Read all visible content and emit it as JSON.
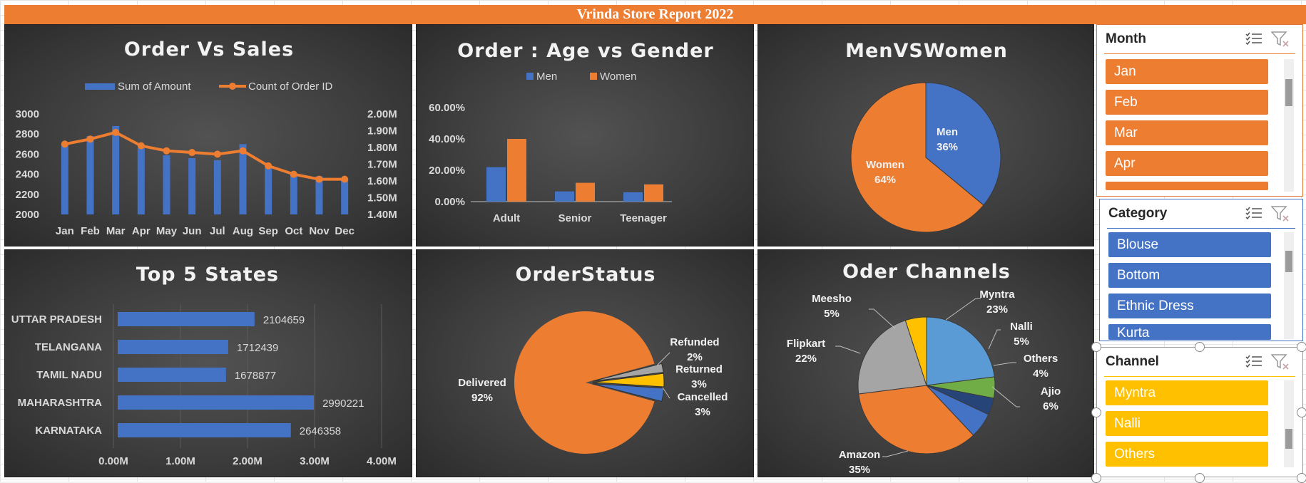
{
  "report_title": "Vrinda Store Report 2022",
  "colors": {
    "orange": "#ed7d31",
    "blue": "#4472c4",
    "gray": "#a5a5a5",
    "yellow": "#ffc000",
    "green": "#70ad47",
    "navy": "#264478"
  },
  "charts": {
    "order_vs_sales": {
      "title": "Order Vs Sales",
      "legend_amount": "Sum of Amount",
      "legend_orders": "Count of Order ID",
      "left_ticks": [
        "3000",
        "2800",
        "2600",
        "2400",
        "2200",
        "2000"
      ],
      "right_ticks": [
        "2.00M",
        "1.90M",
        "1.80M",
        "1.70M",
        "1.60M",
        "1.50M",
        "1.40M"
      ]
    },
    "age_gender": {
      "title": "Order : Age vs Gender",
      "legend_men": "Men",
      "legend_women": "Women",
      "y_ticks": [
        "60.00%",
        "40.00%",
        "20.00%",
        "0.00%"
      ]
    },
    "men_vs_women": {
      "title": "MenVSWomen",
      "men_name": "Men",
      "men_pct": "36%",
      "women_name": "Women",
      "women_pct": "64%"
    },
    "top_states": {
      "title": "Top 5 States",
      "x_ticks": [
        "0.00M",
        "1.00M",
        "2.00M",
        "3.00M",
        "4.00M"
      ]
    },
    "order_status": {
      "title": "OrderStatus",
      "labels": [
        {
          "name": "Delivered",
          "pct": "92%"
        },
        {
          "name": "Refunded",
          "pct": "2%"
        },
        {
          "name": "Returned",
          "pct": "3%"
        },
        {
          "name": "Cancelled",
          "pct": "3%"
        }
      ]
    },
    "channels": {
      "title": "Oder Channels",
      "labels": [
        {
          "name": "Myntra",
          "pct": "23%"
        },
        {
          "name": "Nalli",
          "pct": "5%"
        },
        {
          "name": "Others",
          "pct": "4%"
        },
        {
          "name": "Ajio",
          "pct": "6%"
        },
        {
          "name": "Amazon",
          "pct": "35%"
        },
        {
          "name": "Flipkart",
          "pct": "22%"
        },
        {
          "name": "Meesho",
          "pct": "5%"
        }
      ]
    }
  },
  "chart_data": [
    {
      "type": "bar",
      "title": "Order Vs Sales",
      "categories": [
        "Jan",
        "Feb",
        "Mar",
        "Apr",
        "May",
        "Jun",
        "Jul",
        "Aug",
        "Sep",
        "Oct",
        "Nov",
        "Dec"
      ],
      "series": [
        {
          "name": "Sum of Amount",
          "type": "bar",
          "axis": "left",
          "values": [
            2700,
            2780,
            2880,
            2660,
            2590,
            2560,
            2540,
            2700,
            2460,
            2400,
            2380,
            2360
          ]
        },
        {
          "name": "Count of Order ID",
          "type": "line",
          "axis": "right",
          "values": [
            1.82,
            1.85,
            1.89,
            1.81,
            1.78,
            1.77,
            1.76,
            1.78,
            1.69,
            1.64,
            1.61,
            1.61
          ]
        }
      ],
      "ylim_left": [
        2000,
        3000
      ],
      "ylim_right_millions": [
        1.4,
        2.0
      ],
      "legend": "top"
    },
    {
      "type": "bar",
      "title": "Order : Age vs Gender",
      "categories": [
        "Adult",
        "Senior",
        "Teenager"
      ],
      "series": [
        {
          "name": "Men",
          "values": [
            22,
            6.5,
            6
          ]
        },
        {
          "name": "Women",
          "values": [
            40,
            12,
            11
          ]
        }
      ],
      "ylim": [
        0,
        60
      ],
      "legend": "top"
    },
    {
      "type": "pie",
      "title": "MenVSWomen",
      "labels": [
        "Men",
        "Women"
      ],
      "values": [
        36,
        64
      ]
    },
    {
      "type": "bar",
      "orientation": "horizontal",
      "title": "Top 5 States",
      "categories": [
        "UTTAR PRADESH",
        "TELANGANA",
        "TAMIL NADU",
        "MAHARASHTRA",
        "KARNATAKA"
      ],
      "values": [
        2104659,
        1712439,
        1678877,
        2990221,
        2646358
      ],
      "xlim": [
        0,
        4000000
      ]
    },
    {
      "type": "pie",
      "title": "OrderStatus",
      "labels": [
        "Delivered",
        "Refunded",
        "Returned",
        "Cancelled"
      ],
      "values": [
        92,
        2,
        3,
        3
      ]
    },
    {
      "type": "pie",
      "title": "Oder Channels",
      "labels": [
        "Myntra",
        "Nalli",
        "Others",
        "Ajio",
        "Amazon",
        "Flipkart",
        "Meesho"
      ],
      "values": [
        23,
        5,
        4,
        6,
        35,
        22,
        5
      ]
    }
  ],
  "slicers": {
    "month": {
      "title": "Month",
      "items": [
        "Jan",
        "Feb",
        "Mar",
        "Apr"
      ]
    },
    "category": {
      "title": "Category",
      "items": [
        "Blouse",
        "Bottom",
        "Ethnic Dress",
        "Kurta"
      ]
    },
    "channel": {
      "title": "Channel",
      "items": [
        "Myntra",
        "Nalli",
        "Others"
      ]
    }
  }
}
